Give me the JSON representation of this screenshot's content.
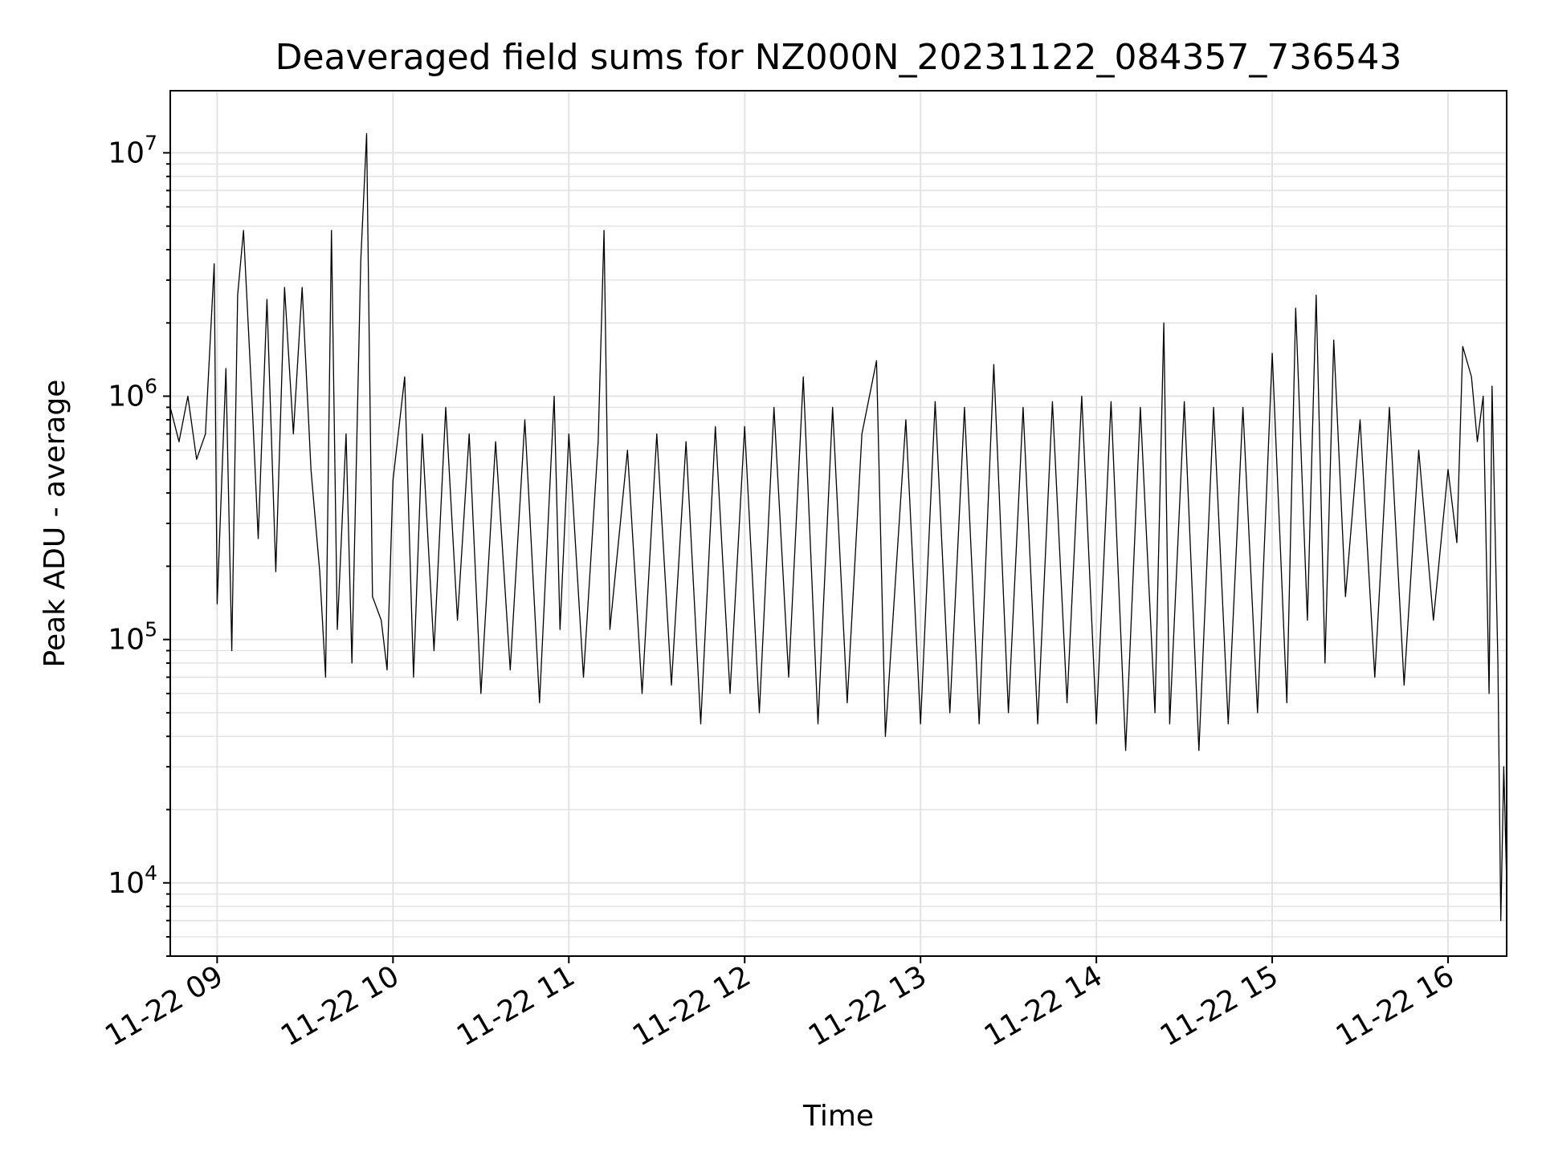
{
  "chart_data": {
    "type": "line",
    "title": "Deaveraged field sums for NZ000N_20231122_084357_736543",
    "xlabel": "Time",
    "ylabel": "Peak ADU - average",
    "yscale": "log",
    "grid": true,
    "colors": {
      "line": "#000000",
      "grid": "#e3e3e3"
    },
    "xlim": [
      "11-22 08:44",
      "11-22 16:20"
    ],
    "ylim": [
      5000,
      18000000
    ],
    "x_ticks": [
      "11-22 09",
      "11-22 10",
      "11-22 11",
      "11-22 12",
      "11-22 13",
      "11-22 14",
      "11-22 15",
      "11-22 16"
    ],
    "y_ticks": [
      {
        "value": 10000,
        "base": "10",
        "exp": "4"
      },
      {
        "value": 100000,
        "base": "10",
        "exp": "5"
      },
      {
        "value": 1000000,
        "base": "10",
        "exp": "6"
      },
      {
        "value": 10000000,
        "base": "10",
        "exp": "7"
      }
    ],
    "series": [
      {
        "points": [
          [
            "11-22 08:44",
            900000
          ],
          [
            "11-22 08:47",
            650000
          ],
          [
            "11-22 08:50",
            1000000
          ],
          [
            "11-22 08:53",
            550000
          ],
          [
            "11-22 08:56",
            700000
          ],
          [
            "11-22 08:59",
            3500000
          ],
          [
            "11-22 09:00",
            140000
          ],
          [
            "11-22 09:03",
            1300000
          ],
          [
            "11-22 09:05",
            90000
          ],
          [
            "11-22 09:07",
            2600000
          ],
          [
            "11-22 09:09",
            4800000
          ],
          [
            "11-22 09:12",
            900000
          ],
          [
            "11-22 09:14",
            260000
          ],
          [
            "11-22 09:17",
            2500000
          ],
          [
            "11-22 09:20",
            190000
          ],
          [
            "11-22 09:23",
            2800000
          ],
          [
            "11-22 09:26",
            700000
          ],
          [
            "11-22 09:29",
            2800000
          ],
          [
            "11-22 09:32",
            500000
          ],
          [
            "11-22 09:35",
            190000
          ],
          [
            "11-22 09:37",
            70000
          ],
          [
            "11-22 09:39",
            4800000
          ],
          [
            "11-22 09:41",
            110000
          ],
          [
            "11-22 09:44",
            700000
          ],
          [
            "11-22 09:46",
            80000
          ],
          [
            "11-22 09:49",
            3600000
          ],
          [
            "11-22 09:51",
            12000000
          ],
          [
            "11-22 09:53",
            150000
          ],
          [
            "11-22 09:56",
            120000
          ],
          [
            "11-22 09:58",
            75000
          ],
          [
            "11-22 10:00",
            450000
          ],
          [
            "11-22 10:04",
            1200000
          ],
          [
            "11-22 10:07",
            70000
          ],
          [
            "11-22 10:10",
            700000
          ],
          [
            "11-22 10:14",
            90000
          ],
          [
            "11-22 10:18",
            900000
          ],
          [
            "11-22 10:22",
            120000
          ],
          [
            "11-22 10:26",
            700000
          ],
          [
            "11-22 10:30",
            60000
          ],
          [
            "11-22 10:35",
            650000
          ],
          [
            "11-22 10:40",
            75000
          ],
          [
            "11-22 10:45",
            800000
          ],
          [
            "11-22 10:50",
            55000
          ],
          [
            "11-22 10:55",
            1000000
          ],
          [
            "11-22 10:57",
            110000
          ],
          [
            "11-22 11:00",
            700000
          ],
          [
            "11-22 11:05",
            70000
          ],
          [
            "11-22 11:10",
            650000
          ],
          [
            "11-22 11:12",
            4800000
          ],
          [
            "11-22 11:14",
            110000
          ],
          [
            "11-22 11:20",
            600000
          ],
          [
            "11-22 11:25",
            60000
          ],
          [
            "11-22 11:30",
            700000
          ],
          [
            "11-22 11:35",
            65000
          ],
          [
            "11-22 11:40",
            650000
          ],
          [
            "11-22 11:45",
            45000
          ],
          [
            "11-22 11:50",
            750000
          ],
          [
            "11-22 11:55",
            60000
          ],
          [
            "11-22 12:00",
            750000
          ],
          [
            "11-22 12:05",
            50000
          ],
          [
            "11-22 12:10",
            900000
          ],
          [
            "11-22 12:15",
            70000
          ],
          [
            "11-22 12:20",
            1200000
          ],
          [
            "11-22 12:25",
            45000
          ],
          [
            "11-22 12:30",
            900000
          ],
          [
            "11-22 12:35",
            55000
          ],
          [
            "11-22 12:40",
            700000
          ],
          [
            "11-22 12:45",
            1400000
          ],
          [
            "11-22 12:48",
            40000
          ],
          [
            "11-22 12:55",
            800000
          ],
          [
            "11-22 13:00",
            45000
          ],
          [
            "11-22 13:05",
            950000
          ],
          [
            "11-22 13:10",
            50000
          ],
          [
            "11-22 13:15",
            900000
          ],
          [
            "11-22 13:20",
            45000
          ],
          [
            "11-22 13:25",
            1350000
          ],
          [
            "11-22 13:30",
            50000
          ],
          [
            "11-22 13:35",
            900000
          ],
          [
            "11-22 13:40",
            45000
          ],
          [
            "11-22 13:45",
            950000
          ],
          [
            "11-22 13:50",
            55000
          ],
          [
            "11-22 13:55",
            1000000
          ],
          [
            "11-22 14:00",
            45000
          ],
          [
            "11-22 14:05",
            950000
          ],
          [
            "11-22 14:10",
            35000
          ],
          [
            "11-22 14:15",
            900000
          ],
          [
            "11-22 14:20",
            50000
          ],
          [
            "11-22 14:23",
            2000000
          ],
          [
            "11-22 14:25",
            45000
          ],
          [
            "11-22 14:30",
            950000
          ],
          [
            "11-22 14:35",
            35000
          ],
          [
            "11-22 14:40",
            900000
          ],
          [
            "11-22 14:45",
            45000
          ],
          [
            "11-22 14:50",
            900000
          ],
          [
            "11-22 14:55",
            50000
          ],
          [
            "11-22 15:00",
            1500000
          ],
          [
            "11-22 15:05",
            55000
          ],
          [
            "11-22 15:08",
            2300000
          ],
          [
            "11-22 15:12",
            120000
          ],
          [
            "11-22 15:15",
            2600000
          ],
          [
            "11-22 15:18",
            80000
          ],
          [
            "11-22 15:21",
            1700000
          ],
          [
            "11-22 15:25",
            150000
          ],
          [
            "11-22 15:30",
            800000
          ],
          [
            "11-22 15:35",
            70000
          ],
          [
            "11-22 15:40",
            900000
          ],
          [
            "11-22 15:45",
            65000
          ],
          [
            "11-22 15:50",
            600000
          ],
          [
            "11-22 15:55",
            120000
          ],
          [
            "11-22 16:00",
            500000
          ],
          [
            "11-22 16:03",
            250000
          ],
          [
            "11-22 16:05",
            1600000
          ],
          [
            "11-22 16:08",
            1200000
          ],
          [
            "11-22 16:10",
            650000
          ],
          [
            "11-22 16:12",
            1000000
          ],
          [
            "11-22 16:14",
            60000
          ],
          [
            "11-22 16:15",
            1100000
          ],
          [
            "11-22 16:17",
            80000
          ],
          [
            "11-22 16:18",
            7000
          ],
          [
            "11-22 16:19",
            30000
          ],
          [
            "11-22 16:20",
            10000
          ]
        ]
      }
    ]
  }
}
